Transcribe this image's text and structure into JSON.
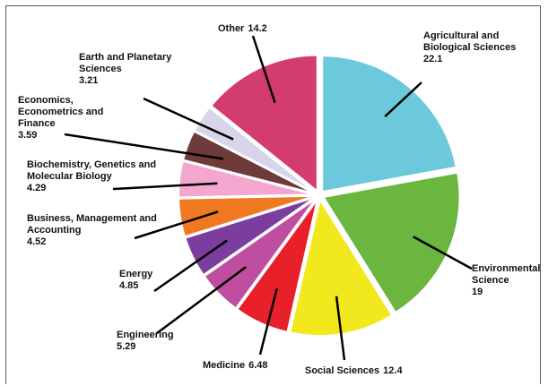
{
  "chart_data": {
    "type": "pie",
    "categories": [
      "Agricultural and Biological Sciences",
      "Environmental Science",
      "Social Sciences",
      "Medicine",
      "Engineering",
      "Energy",
      "Business, Management and Accounting",
      "Biochemistry, Genetics and Molecular Biology",
      "Economics, Econometrics and Finance",
      "Earth and Planetary Sciences",
      "Other"
    ],
    "values": [
      22.1,
      19,
      12.4,
      6.48,
      5.29,
      4.85,
      4.52,
      4.29,
      3.59,
      3.21,
      14.2
    ],
    "colors": [
      "#6cc9dc",
      "#6ab63f",
      "#f2e81e",
      "#e8202a",
      "#c04ea0",
      "#7b3d9e",
      "#f07820",
      "#f3a7cf",
      "#6e3a3a",
      "#d8d5ea",
      "#d33c6e"
    ]
  }
}
